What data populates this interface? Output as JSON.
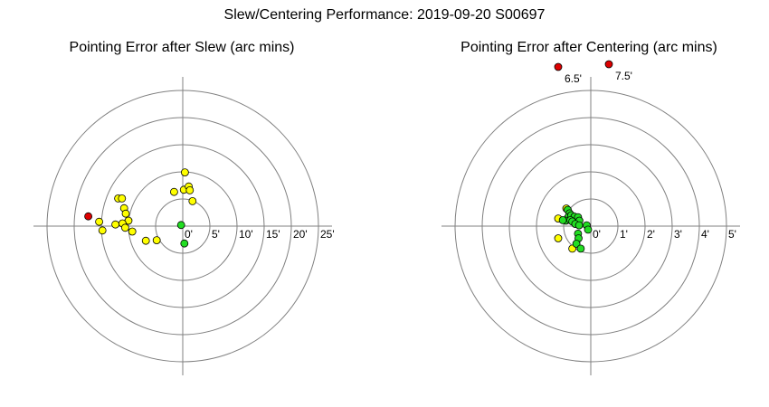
{
  "title": "Slew/Centering Performance: 2019-09-20 S00697",
  "colors": {
    "in_range_green": "#22dd22",
    "moderate_yellow": "#ffff00",
    "outlier_red": "#dd0000",
    "ring": "#808080",
    "axis": "#808080",
    "marker_edge": "#000000"
  },
  "chart_data": [
    {
      "type": "scatter",
      "title": "Pointing Error after Slew (arc mins)",
      "radial_ticks": [
        "0'",
        "5'",
        "10'",
        "15'",
        "20'",
        "25'"
      ],
      "rmax": 25,
      "unit": "arcmin",
      "points": [
        {
          "x": -0.3,
          "y": 0.2,
          "c": "green"
        },
        {
          "x": 0.3,
          "y": -3.2,
          "c": "green"
        },
        {
          "x": 0.4,
          "y": 9.9,
          "c": "yellow"
        },
        {
          "x": 0.2,
          "y": 6.7,
          "c": "yellow"
        },
        {
          "x": 1.1,
          "y": 7.3,
          "c": "yellow"
        },
        {
          "x": 1.3,
          "y": 6.6,
          "c": "yellow"
        },
        {
          "x": -1.6,
          "y": 6.3,
          "c": "yellow"
        },
        {
          "x": 1.8,
          "y": 4.6,
          "c": "yellow"
        },
        {
          "x": -11.9,
          "y": 5.1,
          "c": "yellow"
        },
        {
          "x": -11.2,
          "y": 5.1,
          "c": "yellow"
        },
        {
          "x": -10.8,
          "y": 3.3,
          "c": "yellow"
        },
        {
          "x": -10.5,
          "y": 2.3,
          "c": "yellow"
        },
        {
          "x": -10.0,
          "y": 1.0,
          "c": "yellow"
        },
        {
          "x": -11.1,
          "y": 0.5,
          "c": "yellow"
        },
        {
          "x": -12.4,
          "y": 0.3,
          "c": "yellow"
        },
        {
          "x": -15.4,
          "y": 0.8,
          "c": "yellow"
        },
        {
          "x": -14.8,
          "y": -0.8,
          "c": "yellow"
        },
        {
          "x": -10.6,
          "y": -0.3,
          "c": "yellow"
        },
        {
          "x": -9.3,
          "y": -1.0,
          "c": "yellow"
        },
        {
          "x": -6.8,
          "y": -2.7,
          "c": "yellow"
        },
        {
          "x": -4.8,
          "y": -2.6,
          "c": "yellow"
        },
        {
          "x": -17.4,
          "y": 1.8,
          "c": "red"
        }
      ]
    },
    {
      "type": "scatter",
      "title": "Pointing Error after Centering (arc mins)",
      "radial_ticks": [
        "0'",
        "1'",
        "2'",
        "3'",
        "4'",
        "5'"
      ],
      "rmax": 5,
      "unit": "arcmin",
      "points": [
        {
          "x": -0.9,
          "y": 0.65,
          "c": "yellow"
        },
        {
          "x": -1.2,
          "y": 0.28,
          "c": "yellow"
        },
        {
          "x": -1.2,
          "y": -0.45,
          "c": "yellow"
        },
        {
          "x": -0.68,
          "y": -0.83,
          "c": "yellow"
        },
        {
          "x": -0.85,
          "y": 0.6,
          "c": "green"
        },
        {
          "x": -0.78,
          "y": 0.47,
          "c": "green"
        },
        {
          "x": -0.83,
          "y": 0.33,
          "c": "green"
        },
        {
          "x": -0.72,
          "y": 0.4,
          "c": "green"
        },
        {
          "x": -0.6,
          "y": 0.35,
          "c": "green"
        },
        {
          "x": -0.47,
          "y": 0.33,
          "c": "green"
        },
        {
          "x": -0.92,
          "y": 0.2,
          "c": "green"
        },
        {
          "x": -1.03,
          "y": 0.22,
          "c": "green"
        },
        {
          "x": -0.75,
          "y": 0.22,
          "c": "green"
        },
        {
          "x": -0.68,
          "y": 0.17,
          "c": "green"
        },
        {
          "x": -0.42,
          "y": 0.2,
          "c": "green"
        },
        {
          "x": -0.57,
          "y": 0.08,
          "c": "green"
        },
        {
          "x": -0.43,
          "y": 0.03,
          "c": "green"
        },
        {
          "x": -0.15,
          "y": 0.03,
          "c": "green"
        },
        {
          "x": -0.1,
          "y": -0.13,
          "c": "green"
        },
        {
          "x": -0.47,
          "y": -0.28,
          "c": "green"
        },
        {
          "x": -0.45,
          "y": -0.45,
          "c": "green"
        },
        {
          "x": -0.53,
          "y": -0.65,
          "c": "green"
        },
        {
          "x": -0.37,
          "y": -0.83,
          "c": "green"
        }
      ],
      "outliers": [
        {
          "label": "6.5'",
          "c": "red"
        },
        {
          "label": "7.5'",
          "c": "red"
        }
      ]
    }
  ]
}
